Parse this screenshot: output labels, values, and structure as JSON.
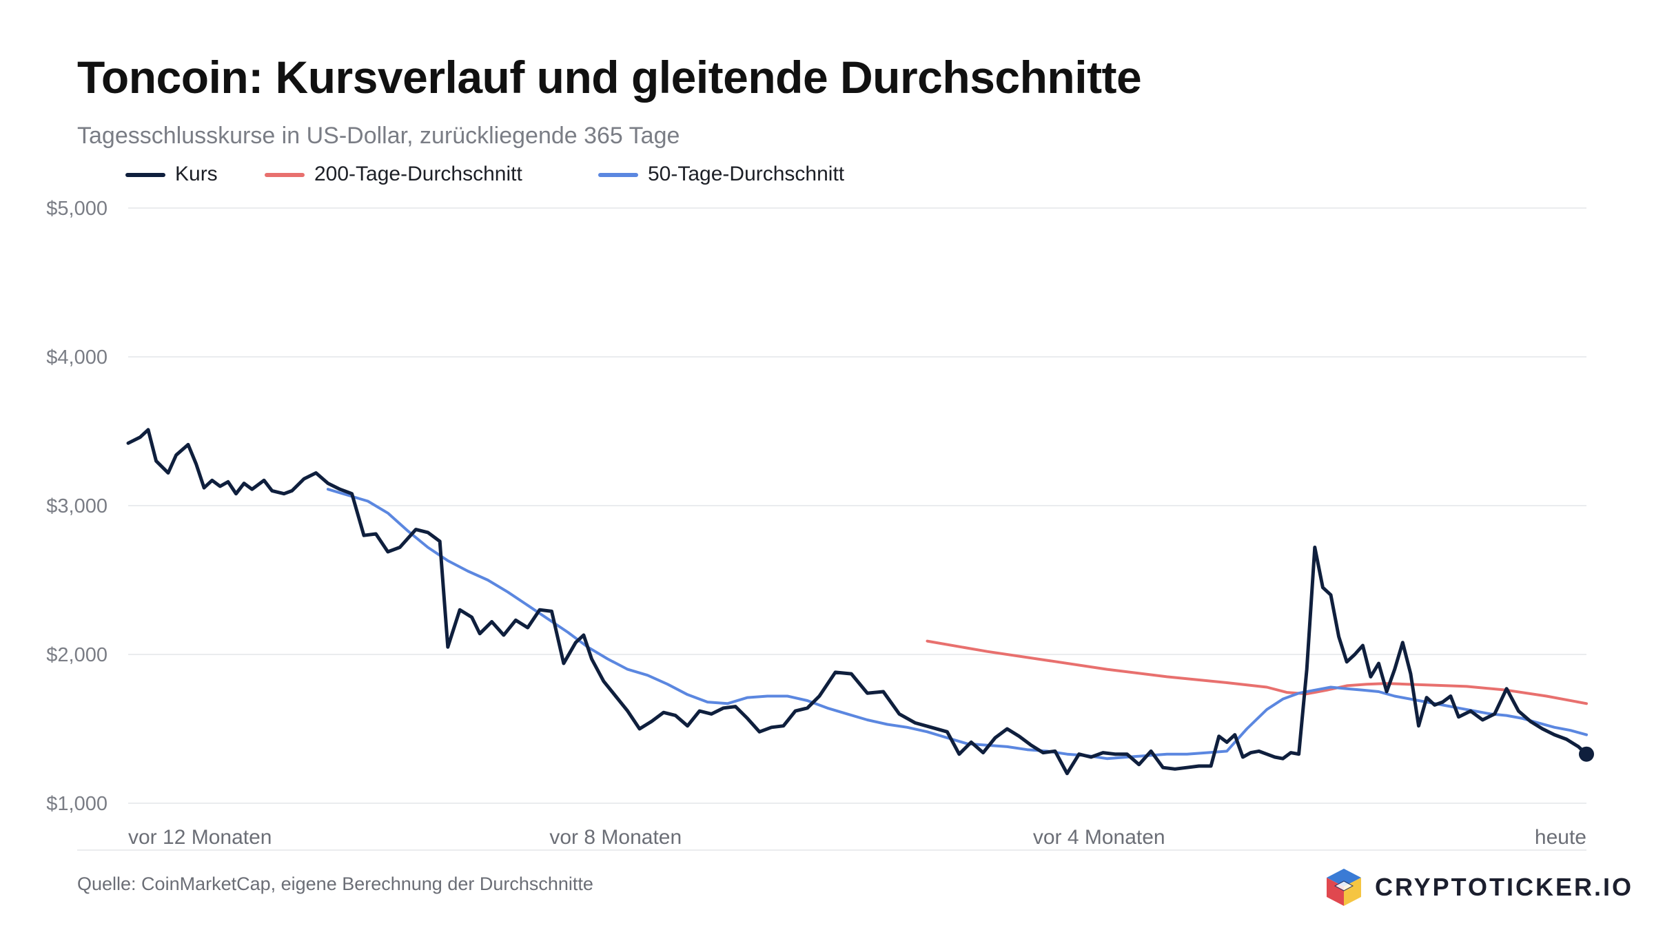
{
  "header": {
    "title": "Toncoin: Kursverlauf und gleitende Durchschnitte",
    "subtitle": "Tagesschlusskurse in US-Dollar, zurückliegende 365 Tage"
  },
  "footer": {
    "source": "Quelle: CoinMarketCap, eigene Berechnung der Durchschnitte",
    "brand": "CRYPTOTICKER.IO",
    "brand_logo_colors": [
      "#e0484f",
      "#3a7bd5",
      "#f5c542",
      "#1c2a5a"
    ]
  },
  "chart_data": {
    "type": "line",
    "x_unit": "Tage vor heute",
    "xlim": [
      -365,
      0
    ],
    "ylim": [
      1000,
      5000
    ],
    "y_ticks": [
      {
        "value": 5000,
        "label": "$5,000"
      },
      {
        "value": 4000,
        "label": "$4,000"
      },
      {
        "value": 3000,
        "label": "$3,000"
      },
      {
        "value": 2000,
        "label": "$2,000"
      },
      {
        "value": 1000,
        "label": "$1,000"
      }
    ],
    "x_ticks": [
      {
        "value": -365,
        "label": "vor 12 Monaten",
        "anchor": "start"
      },
      {
        "value": -243,
        "label": "vor 8 Monaten",
        "anchor": "middle"
      },
      {
        "value": -122,
        "label": "vor 4 Monaten",
        "anchor": "middle"
      },
      {
        "value": 0,
        "label": "heute",
        "anchor": "end"
      }
    ],
    "grid": true,
    "legend_position": "top-left",
    "series": [
      {
        "name": "Kurs",
        "color": "#0f1f3d",
        "end_marker": true,
        "x": [
          -365,
          -362,
          -360,
          -358,
          -355,
          -353,
          -350,
          -348,
          -346,
          -344,
          -342,
          -340,
          -338,
          -336,
          -334,
          -331,
          -329,
          -326,
          -324,
          -321,
          -318,
          -315,
          -312,
          -309,
          -306,
          -303,
          -300,
          -297,
          -293,
          -290,
          -287,
          -285,
          -282,
          -279,
          -277,
          -274,
          -271,
          -268,
          -265,
          -262,
          -259,
          -256,
          -253,
          -251,
          -249,
          -246,
          -243,
          -240,
          -237,
          -234,
          -231,
          -228,
          -225,
          -222,
          -219,
          -216,
          -213,
          -210,
          -207,
          -204,
          -201,
          -198,
          -195,
          -192,
          -188,
          -184,
          -180,
          -176,
          -172,
          -168,
          -164,
          -160,
          -157,
          -154,
          -151,
          -148,
          -145,
          -142,
          -139,
          -136,
          -133,
          -130,
          -127,
          -124,
          -121,
          -118,
          -115,
          -112,
          -109,
          -106,
          -103,
          -100,
          -97,
          -94,
          -92,
          -90,
          -88,
          -86,
          -84,
          -82,
          -80,
          -78,
          -76,
          -74,
          -72,
          -70,
          -68,
          -66,
          -64,
          -62,
          -60,
          -58,
          -56,
          -54,
          -52,
          -50,
          -48,
          -46,
          -44,
          -42,
          -40,
          -38,
          -36,
          -34,
          -32,
          -29,
          -26,
          -23,
          -20,
          -17,
          -14,
          -11,
          -8,
          -5,
          -2,
          0
        ],
        "values": [
          3420,
          3460,
          3510,
          3300,
          3220,
          3340,
          3410,
          3280,
          3120,
          3170,
          3130,
          3160,
          3080,
          3150,
          3110,
          3170,
          3100,
          3080,
          3100,
          3180,
          3220,
          3150,
          3110,
          3080,
          2800,
          2810,
          2690,
          2720,
          2840,
          2820,
          2760,
          2050,
          2300,
          2250,
          2140,
          2220,
          2130,
          2230,
          2180,
          2300,
          2290,
          1940,
          2080,
          2130,
          1970,
          1820,
          1720,
          1620,
          1500,
          1550,
          1610,
          1590,
          1520,
          1620,
          1600,
          1640,
          1650,
          1570,
          1480,
          1510,
          1520,
          1620,
          1640,
          1720,
          1880,
          1870,
          1740,
          1750,
          1600,
          1540,
          1510,
          1480,
          1330,
          1410,
          1340,
          1440,
          1500,
          1450,
          1390,
          1340,
          1350,
          1200,
          1330,
          1310,
          1340,
          1330,
          1330,
          1260,
          1350,
          1240,
          1230,
          1240,
          1250,
          1250,
          1450,
          1410,
          1460,
          1310,
          1340,
          1350,
          1330,
          1310,
          1300,
          1340,
          1330,
          1900,
          2720,
          2450,
          2400,
          2120,
          1950,
          2000,
          2060,
          1850,
          1940,
          1750,
          1900,
          2080,
          1870,
          1520,
          1710,
          1660,
          1680,
          1720,
          1580,
          1620,
          1560,
          1600,
          1770,
          1620,
          1550,
          1500,
          1460,
          1430,
          1380,
          1330
        ]
      },
      {
        "name": "200-Tage-Durchschnitt",
        "color": "#e8706e",
        "x": [
          -165,
          -150,
          -135,
          -120,
          -105,
          -90,
          -80,
          -75,
          -70,
          -65,
          -60,
          -55,
          -50,
          -45,
          -40,
          -30,
          -20,
          -10,
          0
        ],
        "values": [
          2090,
          2020,
          1960,
          1900,
          1850,
          1810,
          1780,
          1745,
          1735,
          1760,
          1790,
          1800,
          1805,
          1800,
          1795,
          1785,
          1760,
          1720,
          1670
        ]
      },
      {
        "name": "50-Tage-Durchschnitt",
        "color": "#5b87e0",
        "x": [
          -315,
          -305,
          -300,
          -295,
          -290,
          -285,
          -280,
          -275,
          -270,
          -265,
          -260,
          -255,
          -250,
          -245,
          -240,
          -235,
          -230,
          -225,
          -220,
          -215,
          -210,
          -205,
          -200,
          -195,
          -190,
          -185,
          -180,
          -175,
          -170,
          -165,
          -160,
          -155,
          -150,
          -145,
          -140,
          -135,
          -130,
          -125,
          -120,
          -115,
          -110,
          -105,
          -100,
          -95,
          -90,
          -85,
          -80,
          -76,
          -72,
          -68,
          -64,
          -60,
          -56,
          -52,
          -48,
          -44,
          -40,
          -36,
          -32,
          -28,
          -24,
          -20,
          -16,
          -12,
          -8,
          -4,
          0
        ],
        "values": [
          3110,
          3030,
          2950,
          2830,
          2720,
          2630,
          2560,
          2500,
          2420,
          2330,
          2240,
          2150,
          2050,
          1970,
          1900,
          1860,
          1800,
          1730,
          1680,
          1670,
          1710,
          1720,
          1720,
          1690,
          1640,
          1600,
          1560,
          1530,
          1510,
          1480,
          1440,
          1400,
          1390,
          1380,
          1360,
          1350,
          1330,
          1320,
          1300,
          1310,
          1320,
          1330,
          1330,
          1340,
          1350,
          1500,
          1630,
          1700,
          1740,
          1760,
          1780,
          1770,
          1760,
          1750,
          1720,
          1700,
          1680,
          1660,
          1640,
          1620,
          1600,
          1590,
          1570,
          1540,
          1510,
          1490,
          1460
        ]
      }
    ]
  }
}
